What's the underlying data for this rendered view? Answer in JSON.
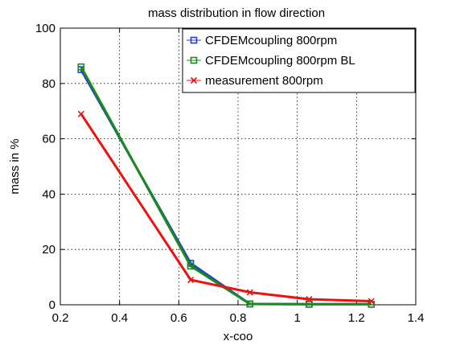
{
  "chart_data": {
    "type": "line",
    "title": "mass distribution in flow direction",
    "xlabel": "x-coo",
    "ylabel": "mass in %",
    "xlim": [
      0.2,
      1.4
    ],
    "ylim": [
      0,
      100
    ],
    "xticks": [
      "0.2",
      "0.4",
      "0.6",
      "0.8",
      "1",
      "1.2",
      "1.4"
    ],
    "yticks": [
      "0",
      "20",
      "40",
      "60",
      "80",
      "100"
    ],
    "grid": true,
    "legend_position": "top-right",
    "series": [
      {
        "name": "CFDEMcoupling 800rpm",
        "color": "#1f3fd6",
        "marker": "square",
        "x": [
          0.27,
          0.64,
          0.84,
          1.04,
          1.25
        ],
        "y": [
          85,
          15,
          0.3,
          0.2,
          0.2
        ]
      },
      {
        "name": "CFDEMcoupling 800rpm BL",
        "color": "#1a8a1a",
        "marker": "square",
        "x": [
          0.27,
          0.64,
          0.84,
          1.04,
          1.25
        ],
        "y": [
          86,
          14,
          0.3,
          0.2,
          0.2
        ]
      },
      {
        "name": "measurement 800rpm",
        "color": "#ee1111",
        "marker": "x",
        "x": [
          0.27,
          0.64,
          0.84,
          1.04,
          1.25
        ],
        "y": [
          69,
          9,
          4.5,
          2,
          1.3
        ]
      }
    ]
  }
}
